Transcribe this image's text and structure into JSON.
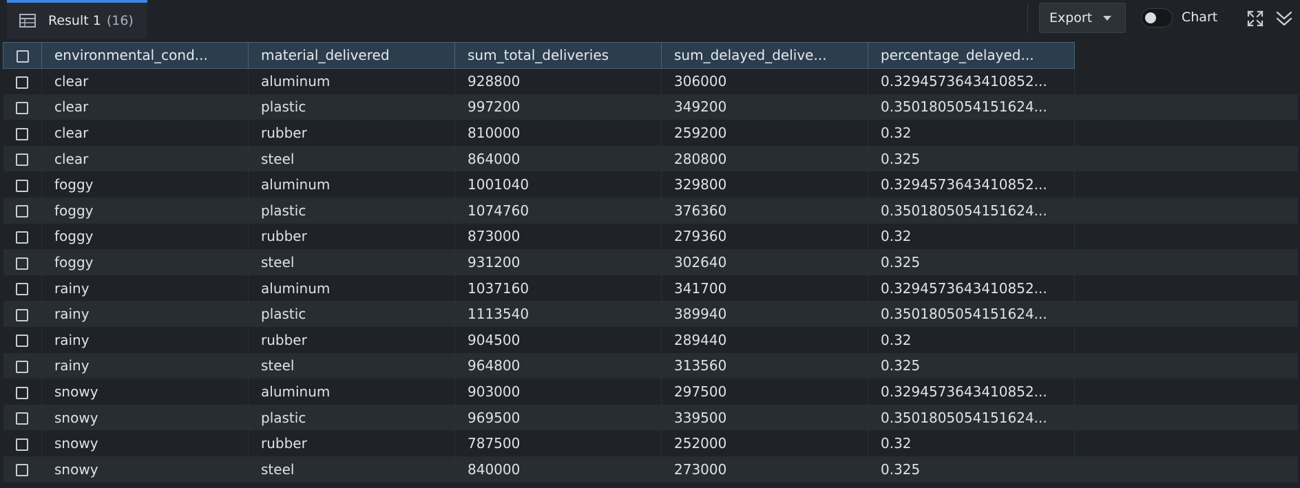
{
  "tab": {
    "label": "Result 1",
    "count": "(16)"
  },
  "toolbar": {
    "export_label": "Export",
    "chart_label": "Chart",
    "chart_toggle_on": false
  },
  "columns": [
    "environmental_cond...",
    "material_delivered",
    "sum_total_deliveries",
    "sum_delayed_delive...",
    "percentage_delayed..."
  ],
  "rows": [
    [
      "clear",
      "aluminum",
      "928800",
      "306000",
      "0.3294573643410852..."
    ],
    [
      "clear",
      "plastic",
      "997200",
      "349200",
      "0.3501805054151624..."
    ],
    [
      "clear",
      "rubber",
      "810000",
      "259200",
      "0.32"
    ],
    [
      "clear",
      "steel",
      "864000",
      "280800",
      "0.325"
    ],
    [
      "foggy",
      "aluminum",
      "1001040",
      "329800",
      "0.3294573643410852..."
    ],
    [
      "foggy",
      "plastic",
      "1074760",
      "376360",
      "0.3501805054151624..."
    ],
    [
      "foggy",
      "rubber",
      "873000",
      "279360",
      "0.32"
    ],
    [
      "foggy",
      "steel",
      "931200",
      "302640",
      "0.325"
    ],
    [
      "rainy",
      "aluminum",
      "1037160",
      "341700",
      "0.3294573643410852..."
    ],
    [
      "rainy",
      "plastic",
      "1113540",
      "389940",
      "0.3501805054151624..."
    ],
    [
      "rainy",
      "rubber",
      "904500",
      "289440",
      "0.32"
    ],
    [
      "rainy",
      "steel",
      "964800",
      "313560",
      "0.325"
    ],
    [
      "snowy",
      "aluminum",
      "903000",
      "297500",
      "0.3294573643410852..."
    ],
    [
      "snowy",
      "plastic",
      "969500",
      "339500",
      "0.3501805054151624..."
    ],
    [
      "snowy",
      "rubber",
      "787500",
      "252000",
      "0.32"
    ],
    [
      "snowy",
      "steel",
      "840000",
      "273000",
      "0.325"
    ]
  ],
  "icons": {
    "tab": "table-icon",
    "export_caret": "caret-down-icon",
    "expand": "expand-icon",
    "collapse": "double-chevron-down-icon"
  },
  "colors": {
    "accent": "#3d86e8",
    "header_bg": "#2c3e4d",
    "row_odd": "#1f2227",
    "row_even": "#282c33"
  }
}
